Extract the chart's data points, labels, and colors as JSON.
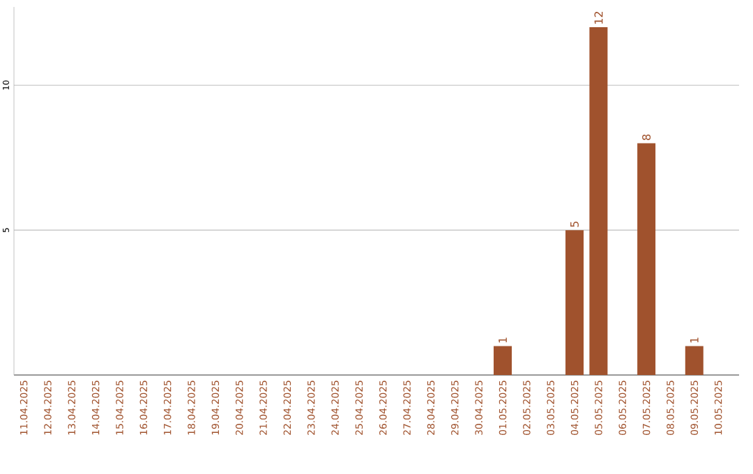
{
  "chart_data": {
    "type": "bar",
    "categories": [
      "11.04.2025",
      "12.04.2025",
      "13.04.2025",
      "14.04.2025",
      "15.04.2025",
      "16.04.2025",
      "17.04.2025",
      "18.04.2025",
      "19.04.2025",
      "20.04.2025",
      "21.04.2025",
      "22.04.2025",
      "23.04.2025",
      "24.04.2025",
      "25.04.2025",
      "26.04.2025",
      "27.04.2025",
      "28.04.2025",
      "29.04.2025",
      "30.04.2025",
      "01.05.2025",
      "02.05.2025",
      "03.05.2025",
      "04.05.2025",
      "05.05.2025",
      "06.05.2025",
      "07.05.2025",
      "08.05.2025",
      "09.05.2025",
      "10.05.2025"
    ],
    "values": [
      0,
      0,
      0,
      0,
      0,
      0,
      0,
      0,
      0,
      0,
      0,
      0,
      0,
      0,
      0,
      0,
      0,
      0,
      0,
      0,
      1,
      0,
      0,
      5,
      12,
      0,
      8,
      0,
      1,
      0
    ],
    "value_labels": [
      null,
      null,
      null,
      null,
      null,
      null,
      null,
      null,
      null,
      null,
      null,
      null,
      null,
      null,
      null,
      null,
      null,
      null,
      null,
      null,
      "1",
      null,
      null,
      "5",
      "12",
      null,
      "8",
      null,
      "1",
      null
    ],
    "color": "#a0522d",
    "ylim": [
      0,
      12.7
    ],
    "yticks": [
      5,
      10
    ],
    "grid": "y"
  }
}
